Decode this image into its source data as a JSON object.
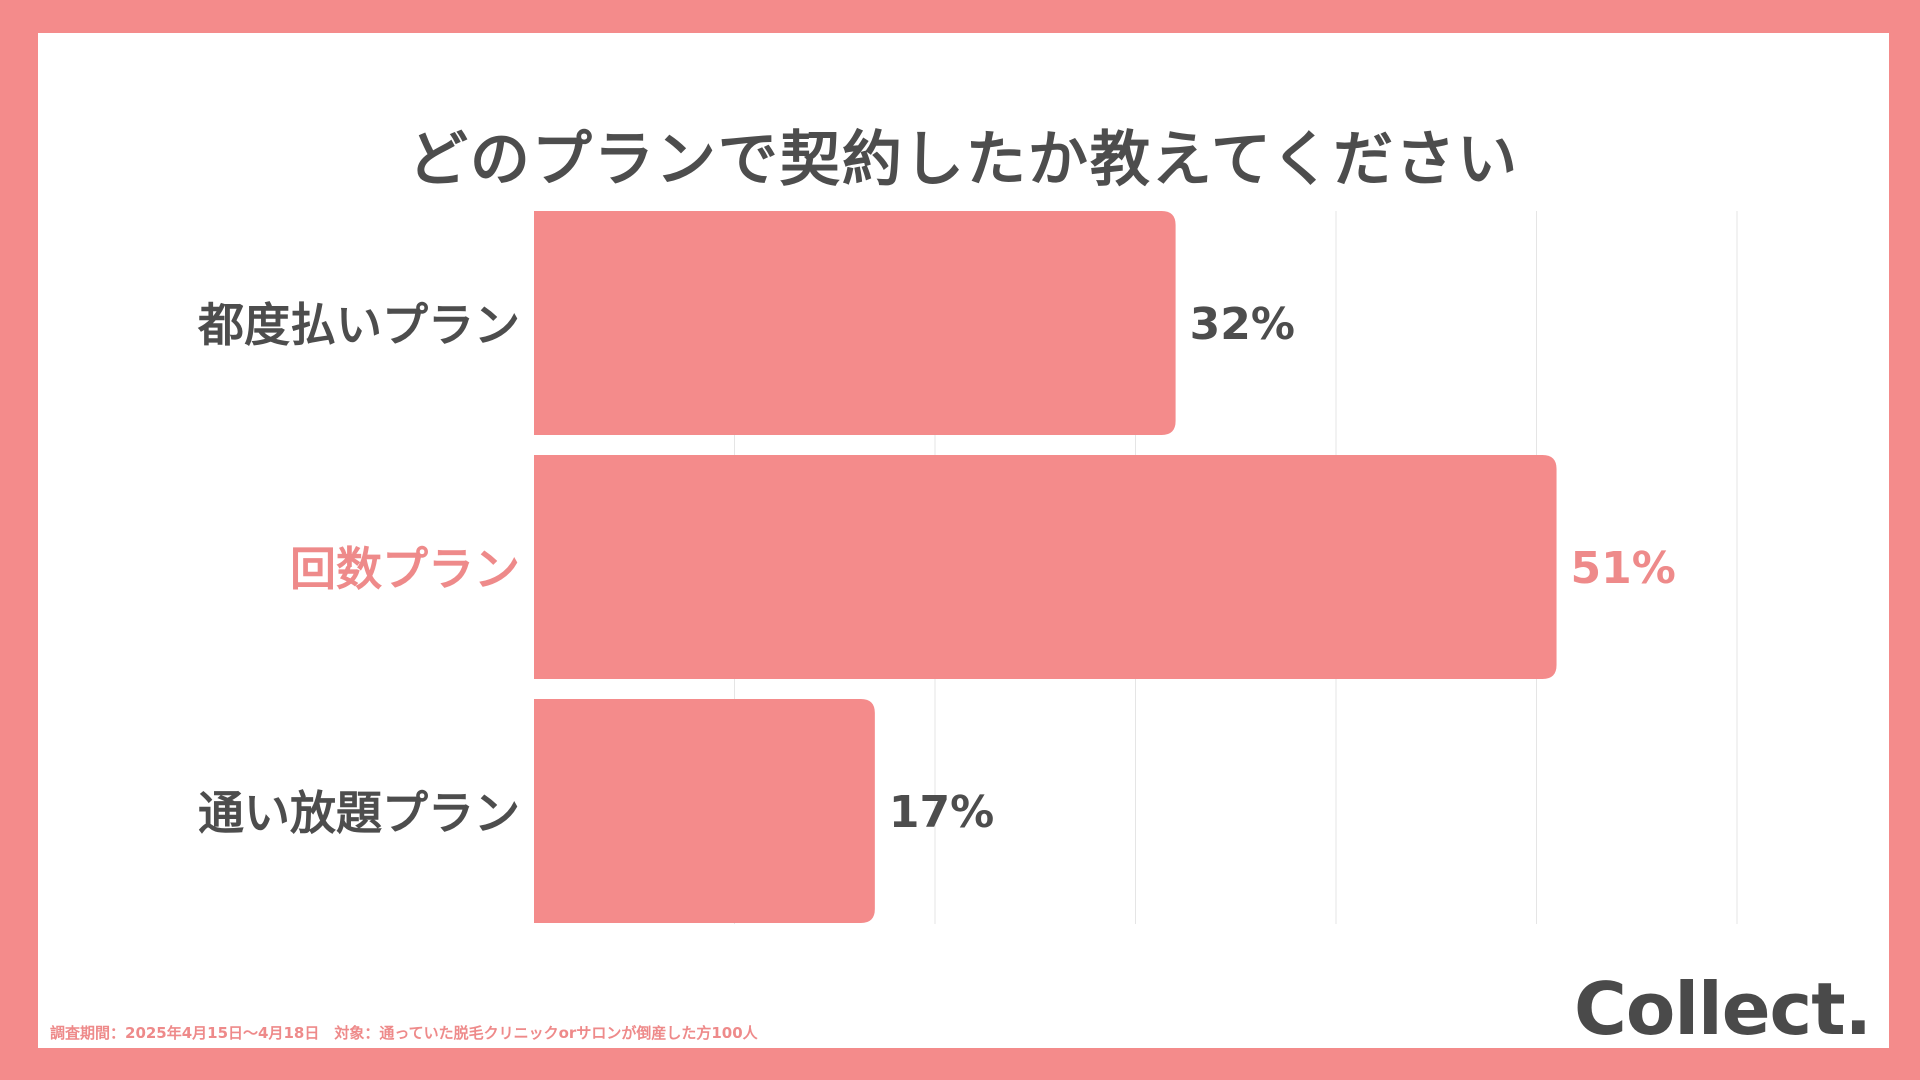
{
  "chart_data": {
    "type": "bar",
    "orientation": "horizontal",
    "title": "どのプランで契約したか教えてください",
    "categories": [
      "都度払いプラン",
      "回数プラン",
      "通い放題プラン"
    ],
    "values": [
      32,
      51,
      17
    ],
    "value_labels": [
      "32%",
      "51%",
      "17%"
    ],
    "highlight_index": 1,
    "xlim": [
      0,
      60
    ],
    "grid": true,
    "colors": {
      "bar": "#f48b8b",
      "highlight_text": "#ee8a8a",
      "text": "#4d4d4d",
      "grid": "#e5e5e5"
    }
  },
  "footnote": "調査期間：2025年4月15日〜4月18日　対象：通っていた脱毛クリニックorサロンが倒産した方100人",
  "logo": "Collect."
}
